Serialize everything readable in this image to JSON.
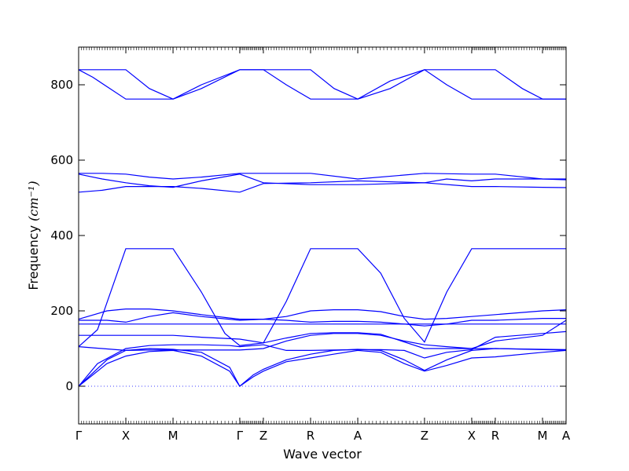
{
  "chart_data": {
    "type": "line",
    "title": "",
    "xlabel": "Wave vector",
    "ylabel": "Frequency",
    "ylabel_unit": "(cm⁻¹)",
    "ylim": [
      -100,
      900
    ],
    "yticks": [
      "0",
      "200",
      "400",
      "600",
      "800"
    ],
    "ytick_values": [
      0,
      200,
      400,
      600,
      800
    ],
    "x_points": [
      "Γ",
      "X",
      "M",
      "Γ",
      "Z",
      "R",
      "A",
      "Z",
      "X",
      "R",
      "M",
      "A"
    ],
    "x_point_positions": [
      0.0,
      0.5,
      1.0,
      1.707,
      1.957,
      2.457,
      2.957,
      3.664,
      4.164,
      4.414,
      4.914,
      5.164
    ],
    "zero_line": true,
    "grid": false,
    "series": [
      {
        "values": [
          [
            0,
            0
          ],
          [
            0.3,
            60
          ],
          [
            0.5,
            80
          ],
          [
            0.75,
            92
          ],
          [
            1.0,
            95
          ],
          [
            1.3,
            80
          ],
          [
            1.6,
            40
          ],
          [
            1.707,
            0
          ],
          [
            1.85,
            25
          ],
          [
            1.957,
            40
          ],
          [
            2.2,
            65
          ],
          [
            2.457,
            75
          ],
          [
            2.7,
            85
          ],
          [
            2.957,
            95
          ],
          [
            3.2,
            90
          ],
          [
            3.45,
            60
          ],
          [
            3.664,
            40
          ],
          [
            3.9,
            55
          ],
          [
            4.164,
            75
          ],
          [
            4.414,
            78
          ],
          [
            4.914,
            90
          ],
          [
            5.164,
            95
          ]
        ]
      },
      {
        "values": [
          [
            0,
            0
          ],
          [
            0.3,
            70
          ],
          [
            0.5,
            95
          ],
          [
            0.75,
            100
          ],
          [
            1.0,
            98
          ],
          [
            1.3,
            90
          ],
          [
            1.6,
            50
          ],
          [
            1.707,
            0
          ],
          [
            1.85,
            30
          ],
          [
            1.957,
            45
          ],
          [
            2.2,
            70
          ],
          [
            2.457,
            85
          ],
          [
            2.7,
            95
          ],
          [
            2.957,
            98
          ],
          [
            3.2,
            95
          ],
          [
            3.45,
            70
          ],
          [
            3.664,
            42
          ],
          [
            3.9,
            70
          ],
          [
            4.164,
            95
          ],
          [
            4.414,
            100
          ],
          [
            4.914,
            98
          ],
          [
            5.164,
            97
          ]
        ]
      },
      {
        "values": [
          [
            0,
            0
          ],
          [
            0.2,
            60
          ],
          [
            0.5,
            100
          ],
          [
            0.75,
            108
          ],
          [
            1.0,
            110
          ],
          [
            1.3,
            110
          ],
          [
            1.6,
            108
          ],
          [
            1.707,
            105
          ],
          [
            1.957,
            110
          ],
          [
            2.2,
            95
          ],
          [
            2.457,
            95
          ],
          [
            2.7,
            96
          ],
          [
            2.957,
            97
          ],
          [
            3.2,
            97
          ],
          [
            3.45,
            95
          ],
          [
            3.664,
            75
          ],
          [
            3.9,
            90
          ],
          [
            4.164,
            97
          ],
          [
            4.414,
            130
          ],
          [
            4.914,
            140
          ],
          [
            5.164,
            145
          ]
        ]
      },
      {
        "values": [
          [
            0,
            105
          ],
          [
            0.25,
            100
          ],
          [
            0.5,
            95
          ],
          [
            0.75,
            96
          ],
          [
            1.0,
            96
          ],
          [
            1.3,
            96
          ],
          [
            1.707,
            96
          ],
          [
            1.957,
            100
          ],
          [
            2.2,
            120
          ],
          [
            2.457,
            135
          ],
          [
            2.7,
            140
          ],
          [
            2.957,
            140
          ],
          [
            3.2,
            135
          ],
          [
            3.45,
            120
          ],
          [
            3.664,
            110
          ],
          [
            3.9,
            105
          ],
          [
            4.164,
            100
          ],
          [
            4.414,
            120
          ],
          [
            4.914,
            135
          ],
          [
            5.164,
            175
          ]
        ]
      },
      {
        "values": [
          [
            0,
            105
          ],
          [
            0.2,
            150
          ],
          [
            0.5,
            365
          ],
          [
            0.75,
            365
          ],
          [
            1.0,
            365
          ],
          [
            1.3,
            250
          ],
          [
            1.55,
            140
          ],
          [
            1.707,
            108
          ],
          [
            1.957,
            115
          ],
          [
            2.2,
            225
          ],
          [
            2.457,
            365
          ],
          [
            2.7,
            365
          ],
          [
            2.957,
            365
          ],
          [
            3.2,
            300
          ],
          [
            3.45,
            180
          ],
          [
            3.664,
            117
          ],
          [
            3.9,
            250
          ],
          [
            4.164,
            365
          ],
          [
            4.414,
            365
          ],
          [
            4.914,
            365
          ],
          [
            5.164,
            365
          ]
        ]
      },
      {
        "values": [
          [
            0,
            135
          ],
          [
            0.5,
            135
          ],
          [
            0.75,
            135
          ],
          [
            1.0,
            135
          ],
          [
            1.3,
            130
          ],
          [
            1.707,
            125
          ],
          [
            1.957,
            115
          ],
          [
            2.2,
            128
          ],
          [
            2.457,
            140
          ],
          [
            2.7,
            142
          ],
          [
            2.957,
            142
          ],
          [
            3.2,
            138
          ],
          [
            3.664,
            100
          ],
          [
            3.9,
            100
          ],
          [
            4.164,
            100
          ],
          [
            4.414,
            100
          ],
          [
            4.914,
            97
          ],
          [
            5.164,
            96
          ]
        ]
      },
      {
        "values": [
          [
            0,
            165
          ],
          [
            0.5,
            165
          ],
          [
            1.0,
            165
          ],
          [
            1.3,
            165
          ],
          [
            1.707,
            165
          ],
          [
            1.957,
            165
          ],
          [
            2.2,
            165
          ],
          [
            2.457,
            165
          ],
          [
            2.957,
            165
          ],
          [
            3.45,
            165
          ],
          [
            3.664,
            165
          ],
          [
            4.164,
            165
          ],
          [
            4.414,
            165
          ],
          [
            4.914,
            165
          ],
          [
            5.164,
            165
          ]
        ]
      },
      {
        "values": [
          [
            0,
            175
          ],
          [
            0.3,
            175
          ],
          [
            0.5,
            170
          ],
          [
            0.75,
            185
          ],
          [
            1.0,
            195
          ],
          [
            1.3,
            185
          ],
          [
            1.707,
            175
          ],
          [
            1.957,
            178
          ],
          [
            2.2,
            175
          ],
          [
            2.457,
            170
          ],
          [
            2.7,
            172
          ],
          [
            2.957,
            172
          ],
          [
            3.2,
            170
          ],
          [
            3.45,
            165
          ],
          [
            3.664,
            160
          ],
          [
            3.9,
            165
          ],
          [
            4.164,
            175
          ],
          [
            4.414,
            175
          ],
          [
            4.914,
            180
          ],
          [
            5.164,
            180
          ]
        ]
      },
      {
        "values": [
          [
            0,
            178
          ],
          [
            0.3,
            200
          ],
          [
            0.5,
            205
          ],
          [
            0.75,
            205
          ],
          [
            1.0,
            200
          ],
          [
            1.3,
            190
          ],
          [
            1.707,
            178
          ],
          [
            1.957,
            178
          ],
          [
            2.2,
            185
          ],
          [
            2.457,
            200
          ],
          [
            2.7,
            203
          ],
          [
            2.957,
            203
          ],
          [
            3.2,
            198
          ],
          [
            3.45,
            185
          ],
          [
            3.664,
            178
          ],
          [
            3.9,
            180
          ],
          [
            4.164,
            185
          ],
          [
            4.414,
            190
          ],
          [
            4.914,
            200
          ],
          [
            5.164,
            203
          ]
        ]
      },
      {
        "values": [
          [
            0,
            565
          ],
          [
            0.25,
            565
          ],
          [
            0.5,
            563
          ],
          [
            0.75,
            555
          ],
          [
            1.0,
            550
          ],
          [
            1.3,
            555
          ],
          [
            1.707,
            565
          ],
          [
            1.957,
            565
          ],
          [
            2.457,
            565
          ],
          [
            2.957,
            550
          ],
          [
            3.664,
            565
          ],
          [
            4.164,
            563
          ],
          [
            4.414,
            563
          ],
          [
            4.914,
            550
          ],
          [
            5.164,
            548
          ]
        ]
      },
      {
        "values": [
          [
            0,
            563
          ],
          [
            0.25,
            550
          ],
          [
            0.5,
            540
          ],
          [
            0.75,
            532
          ],
          [
            1.0,
            528
          ],
          [
            1.3,
            545
          ],
          [
            1.707,
            563
          ],
          [
            1.957,
            540
          ],
          [
            2.457,
            535
          ],
          [
            2.957,
            535
          ],
          [
            3.664,
            540
          ],
          [
            4.164,
            530
          ],
          [
            4.414,
            530
          ],
          [
            4.914,
            528
          ],
          [
            5.164,
            527
          ]
        ]
      },
      {
        "values": [
          [
            0,
            515
          ],
          [
            0.25,
            520
          ],
          [
            0.5,
            530
          ],
          [
            0.75,
            530
          ],
          [
            1.0,
            530
          ],
          [
            1.3,
            525
          ],
          [
            1.707,
            515
          ],
          [
            1.957,
            538
          ],
          [
            2.457,
            540
          ],
          [
            2.957,
            545
          ],
          [
            3.664,
            540
          ],
          [
            3.9,
            550
          ],
          [
            4.164,
            545
          ],
          [
            4.414,
            550
          ],
          [
            4.914,
            550
          ],
          [
            5.164,
            550
          ]
        ]
      },
      {
        "values": [
          [
            0,
            840
          ],
          [
            0.5,
            840
          ],
          [
            0.75,
            790
          ],
          [
            1.0,
            762
          ],
          [
            1.3,
            790
          ],
          [
            1.707,
            840
          ],
          [
            2.207,
            840
          ],
          [
            2.457,
            840
          ],
          [
            2.707,
            790
          ],
          [
            2.957,
            762
          ],
          [
            3.3,
            790
          ],
          [
            3.664,
            840
          ],
          [
            4.164,
            840
          ],
          [
            4.414,
            840
          ],
          [
            4.7,
            790
          ],
          [
            4.914,
            762
          ],
          [
            5.164,
            762
          ]
        ]
      },
      {
        "values": [
          [
            0,
            840
          ],
          [
            0.15,
            820
          ],
          [
            0.5,
            762
          ],
          [
            0.75,
            762
          ],
          [
            1.0,
            762
          ],
          [
            1.3,
            800
          ],
          [
            1.707,
            840
          ],
          [
            1.957,
            840
          ],
          [
            2.2,
            800
          ],
          [
            2.457,
            762
          ],
          [
            2.957,
            762
          ],
          [
            3.3,
            810
          ],
          [
            3.664,
            840
          ],
          [
            3.9,
            800
          ],
          [
            4.164,
            762
          ],
          [
            4.414,
            762
          ],
          [
            4.914,
            762
          ],
          [
            5.164,
            762
          ]
        ]
      }
    ]
  }
}
